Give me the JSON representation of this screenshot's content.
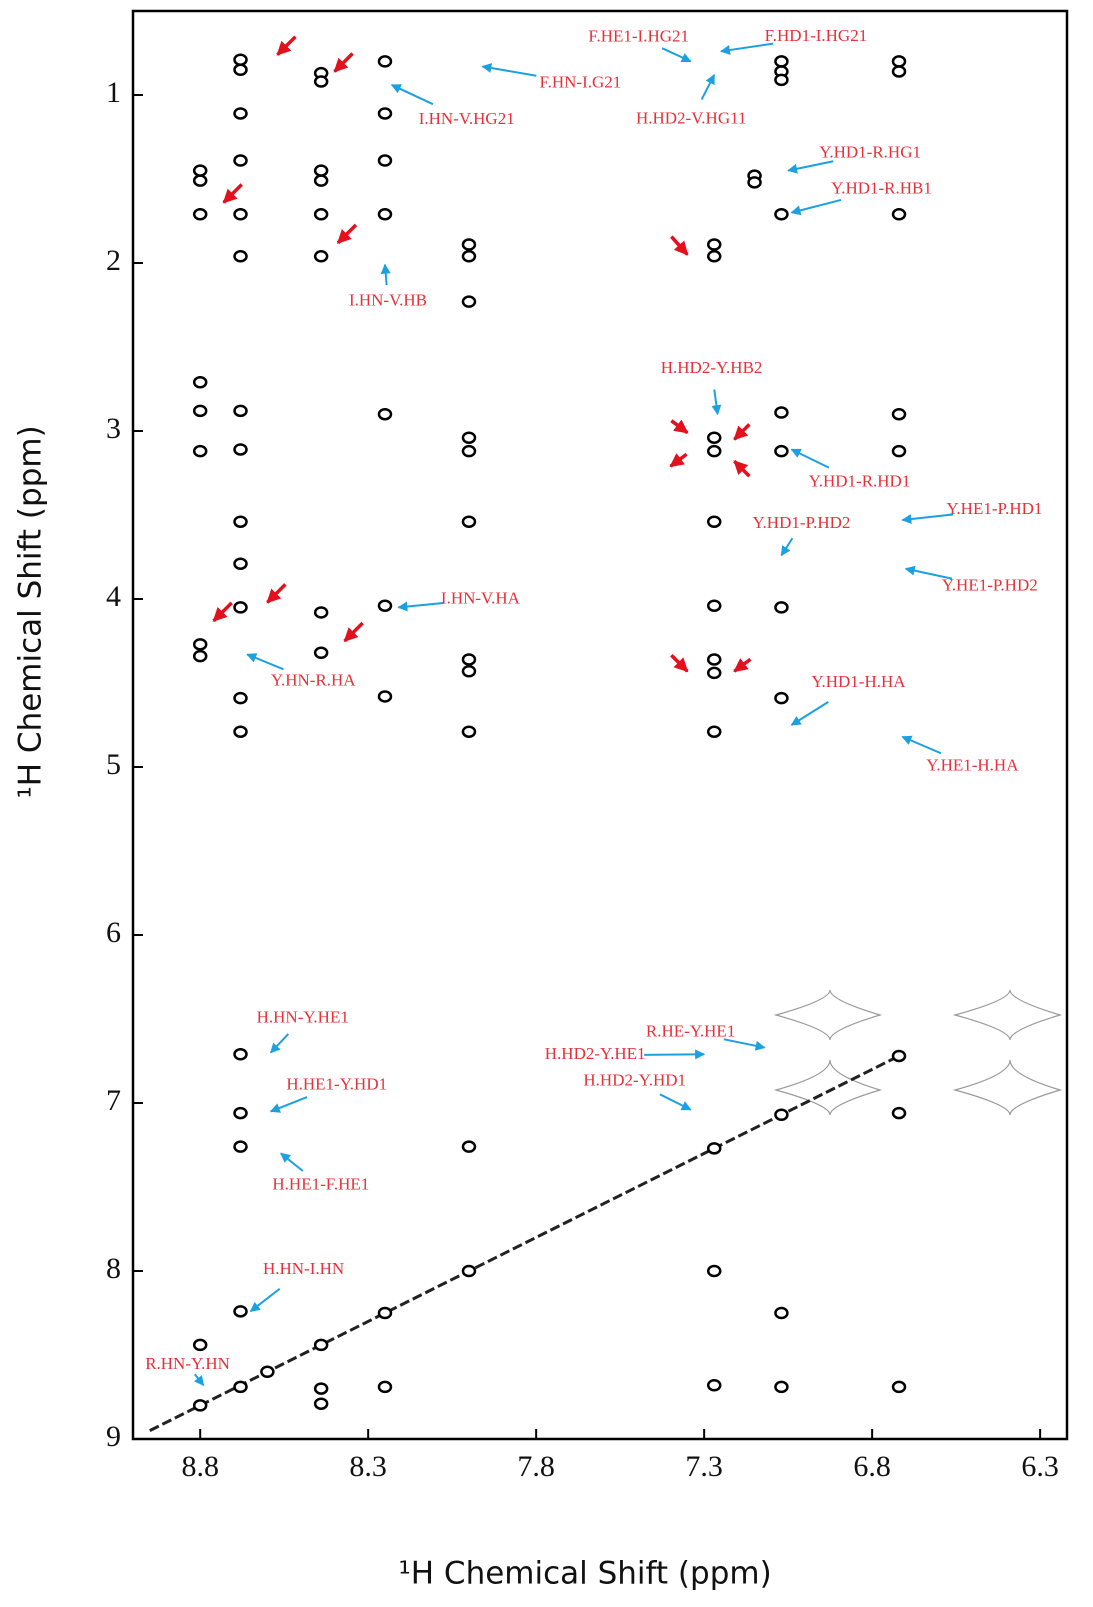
{
  "chart_data": {
    "type": "scatter",
    "xlabel": "¹H Chemical Shift (ppm)",
    "ylabel": "¹H Chemical Shift (ppm)",
    "xlim": [
      9.0,
      6.22
    ],
    "ylim": [
      9,
      0.5
    ],
    "xticks": [
      8.8,
      8.3,
      7.8,
      7.3,
      6.8,
      6.3
    ],
    "yticks": [
      1,
      2,
      3,
      4,
      5,
      6,
      7,
      8,
      9
    ],
    "color": "#000000",
    "x": [
      8.68,
      8.68,
      8.68,
      8.68,
      8.68,
      8.68,
      8.68,
      8.68,
      8.68,
      8.68,
      8.68,
      8.68,
      8.68,
      8.68,
      8.68,
      8.68,
      8.68,
      8.68,
      8.8,
      8.8,
      8.8,
      8.8,
      8.8,
      8.8,
      8.8,
      8.8,
      8.8,
      8.8,
      8.44,
      8.44,
      8.44,
      8.44,
      8.44,
      8.44,
      8.44,
      8.44,
      8.44,
      8.44,
      8.44,
      8.25,
      8.25,
      8.25,
      8.25,
      8.25,
      8.25,
      8.25,
      8.25,
      8.25,
      8.0,
      8.0,
      8.0,
      8.0,
      8.0,
      8.0,
      8.0,
      8.0,
      8.0,
      8.0,
      8.0,
      7.27,
      7.27,
      7.27,
      7.27,
      7.27,
      7.27,
      7.27,
      7.27,
      7.27,
      7.27,
      7.27,
      7.27,
      7.07,
      7.07,
      7.07,
      7.07,
      7.07,
      7.07,
      7.07,
      7.07,
      7.07,
      7.07,
      7.07,
      6.72,
      6.72,
      6.72,
      6.72,
      6.72,
      6.72,
      6.72,
      6.72,
      7.15,
      7.15,
      8.6
    ],
    "values": [
      0.79,
      0.85,
      1.11,
      1.39,
      1.71,
      1.96,
      2.88,
      3.11,
      3.54,
      3.79,
      4.05,
      4.59,
      4.79,
      6.71,
      7.06,
      7.26,
      8.24,
      8.69,
      1.45,
      1.51,
      1.71,
      2.71,
      2.88,
      3.12,
      4.27,
      4.34,
      8.44,
      8.8,
      0.87,
      0.92,
      1.45,
      1.51,
      1.71,
      1.96,
      4.08,
      4.32,
      8.7,
      8.79,
      8.44,
      0.8,
      1.11,
      1.39,
      1.71,
      2.9,
      4.04,
      4.58,
      8.69,
      8.25,
      1.89,
      1.96,
      2.23,
      3.04,
      3.12,
      3.54,
      4.36,
      4.43,
      4.79,
      7.26,
      8.0,
      1.89,
      1.96,
      3.04,
      3.12,
      3.54,
      4.04,
      4.36,
      4.44,
      4.79,
      8.0,
      8.68,
      7.27,
      0.8,
      0.86,
      0.91,
      1.71,
      2.89,
      3.12,
      4.05,
      4.59,
      8.25,
      8.69,
      7.07,
      0.8,
      0.86,
      1.71,
      2.9,
      3.12,
      7.06,
      8.69,
      6.72,
      1.48,
      1.52,
      8.6
    ],
    "annotation_text_color": "#e8303a",
    "annotation_arrow_color": "#1ba1e2",
    "annotations": [
      {
        "text": "F.HE1-I.HG21",
        "x": 7.34,
        "y": 0.8
      },
      {
        "text": "F.HD1-I.HG21",
        "x": 7.25,
        "y": 0.74
      },
      {
        "text": "F.HN-I.G21",
        "x": 7.96,
        "y": 0.83
      },
      {
        "text": "I.HN-V.HG21",
        "x": 8.23,
        "y": 0.94
      },
      {
        "text": "H.HD2-V.HG11",
        "x": 7.27,
        "y": 0.88
      },
      {
        "text": "Y.HD1-R.HG1",
        "x": 7.05,
        "y": 1.45
      },
      {
        "text": "Y.HD1-R.HB1",
        "x": 7.04,
        "y": 1.7
      },
      {
        "text": "I.HN-V.HB",
        "x": 8.25,
        "y": 2.01
      },
      {
        "text": "H.HD2-Y.HB2",
        "x": 7.26,
        "y": 2.9
      },
      {
        "text": "Y.HD1-R.HD1",
        "x": 7.04,
        "y": 3.11
      },
      {
        "text": "Y.HD1-P.HD2",
        "x": 7.07,
        "y": 3.74
      },
      {
        "text": "Y.HE1-P.HD1",
        "x": 6.71,
        "y": 3.53
      },
      {
        "text": "Y.HE1-P.HD2",
        "x": 6.7,
        "y": 3.82
      },
      {
        "text": "I.HN-V.HA",
        "x": 8.21,
        "y": 4.05
      },
      {
        "text": "Y.HN-R.HA",
        "x": 8.66,
        "y": 4.33
      },
      {
        "text": "Y.HD1-H.HA",
        "x": 7.04,
        "y": 4.75
      },
      {
        "text": "Y.HE1-H.HA",
        "x": 6.71,
        "y": 4.82
      },
      {
        "text": "H.HN-Y.HE1",
        "x": 8.59,
        "y": 6.7
      },
      {
        "text": "R.HE-Y.HE1",
        "x": 7.12,
        "y": 6.67
      },
      {
        "text": "H.HD2-Y.HE1",
        "x": 7.3,
        "y": 6.71
      },
      {
        "text": "H.HE1-Y.HD1",
        "x": 8.59,
        "y": 7.05
      },
      {
        "text": "H.HD2-Y.HD1",
        "x": 7.34,
        "y": 7.04
      },
      {
        "text": "H.HE1-F.HE1",
        "x": 8.56,
        "y": 7.3
      },
      {
        "text": "H.HN-I.HN",
        "x": 8.65,
        "y": 8.24
      },
      {
        "text": "R.HN-Y.HN",
        "x": 8.79,
        "y": 8.68
      }
    ],
    "markers": {
      "color": "#e3101d",
      "x": [
        8.57,
        8.4,
        8.73,
        8.39,
        7.35,
        7.35,
        7.21,
        7.4,
        7.21,
        8.76,
        8.6,
        8.37,
        7.35,
        7.21
      ],
      "y": [
        0.76,
        0.86,
        1.64,
        1.88,
        1.95,
        3.01,
        3.05,
        3.21,
        3.18,
        4.13,
        4.02,
        4.25,
        4.43,
        4.43
      ]
    }
  }
}
